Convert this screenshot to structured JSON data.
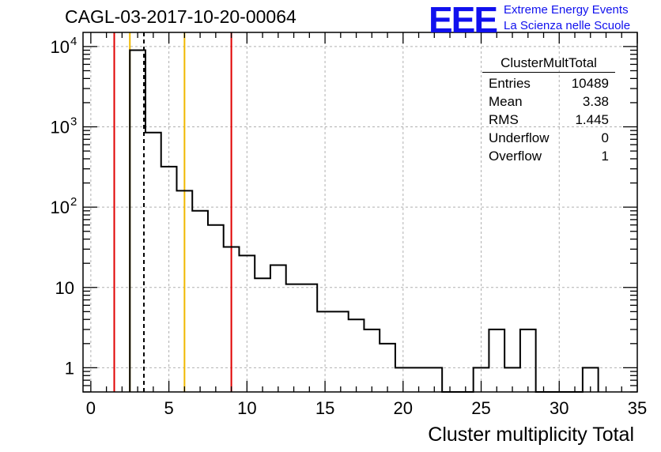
{
  "header": {
    "title": "CAGL-03-2017-10-20-00064",
    "logo_text": "EEE",
    "logo_line1": "Extreme Energy Events",
    "logo_line2": "La Scienza nelle Scuole"
  },
  "stats": {
    "name": "ClusterMultTotal",
    "rows": [
      {
        "label": "Entries",
        "value": "10489"
      },
      {
        "label": "Mean",
        "value": "3.38"
      },
      {
        "label": "RMS",
        "value": "1.445"
      },
      {
        "label": "Underflow",
        "value": "0"
      },
      {
        "label": "Overflow",
        "value": "1"
      }
    ]
  },
  "chart_data": {
    "type": "histogram",
    "xlabel": "Cluster multiplicity Total",
    "ylabel": "",
    "xlim": [
      -0.5,
      35.0
    ],
    "ylim": [
      0.5,
      15000
    ],
    "yscale": "log",
    "grid": true,
    "x_ticks": [
      0,
      5,
      10,
      15,
      20,
      25,
      30,
      35
    ],
    "y_ticks": [
      {
        "value": 1,
        "label": "1"
      },
      {
        "value": 10,
        "label": "10"
      },
      {
        "value": 100,
        "label": "10",
        "exp": "2"
      },
      {
        "value": 1000,
        "label": "10",
        "exp": "3"
      },
      {
        "value": 10000,
        "label": "10",
        "exp": "4"
      }
    ],
    "bin_low_edge": 2.5,
    "bin_width": 1,
    "counts": [
      9000,
      850,
      320,
      160,
      90,
      60,
      32,
      25,
      13,
      19,
      11,
      11,
      5,
      5,
      4,
      3,
      2,
      1,
      1,
      1,
      0,
      0,
      1,
      3,
      1,
      3,
      0,
      0,
      0,
      1
    ],
    "vertical_lines": [
      {
        "x": 1.5,
        "color": "#e00000",
        "style": "solid"
      },
      {
        "x": 2.5,
        "color": "#f0b800",
        "style": "solid"
      },
      {
        "x": 3.4,
        "color": "#000000",
        "style": "dashed"
      },
      {
        "x": 6.0,
        "color": "#f0b800",
        "style": "solid"
      },
      {
        "x": 9.0,
        "color": "#e00000",
        "style": "solid"
      }
    ]
  }
}
